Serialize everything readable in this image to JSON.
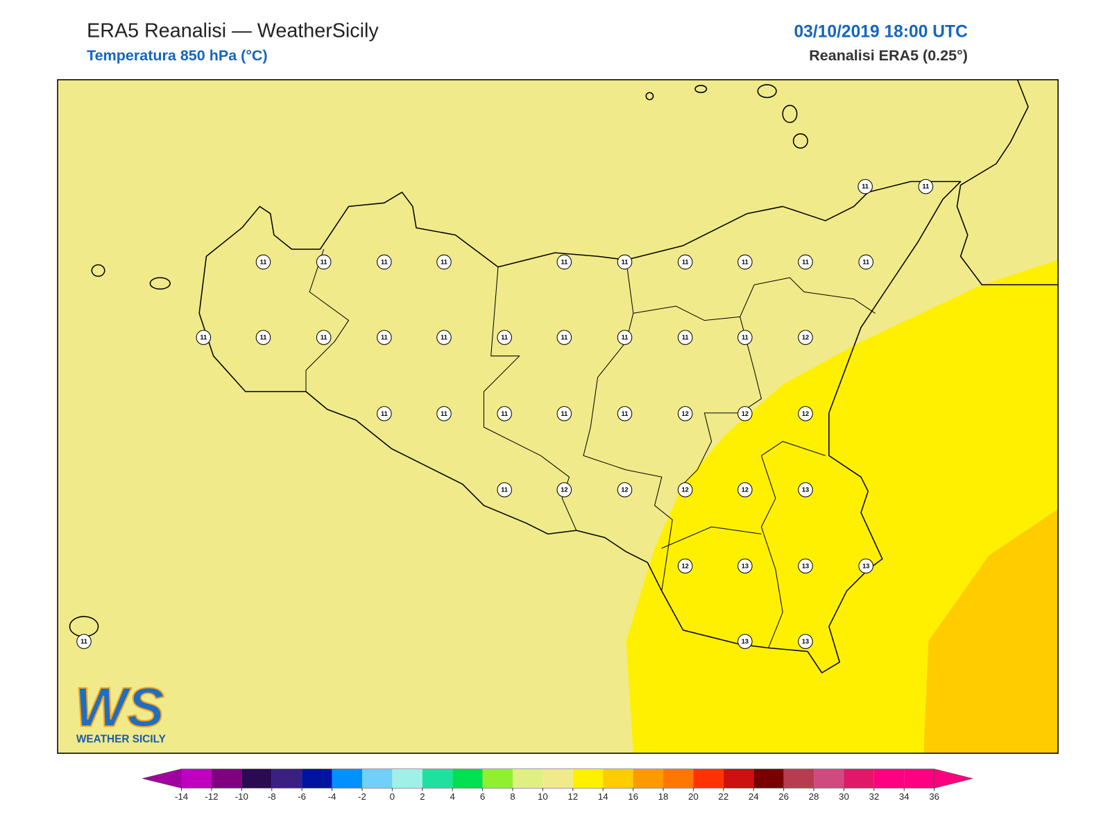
{
  "header": {
    "title": "ERA5 Reanalisi — WeatherSicily",
    "subtitle": "Temperatura 850 hPa (°C)",
    "datetime": "03/10/2019 18:00 UTC",
    "source": "Reanalisi ERA5 (0.25°)"
  },
  "stations": [
    11,
    11,
    11,
    11,
    11,
    11,
    11,
    11,
    11,
    11,
    11,
    11,
    11,
    11,
    11,
    11,
    11,
    11,
    11,
    11,
    11,
    11,
    12,
    11,
    11,
    11,
    11,
    11,
    12,
    12,
    12,
    11,
    12,
    12,
    12,
    12,
    13,
    12,
    13,
    13,
    13,
    13,
    13,
    11
  ],
  "colorbar": {
    "ticks": [
      -14,
      -12,
      -10,
      -8,
      -6,
      -4,
      -2,
      0,
      2,
      4,
      6,
      8,
      10,
      12,
      14,
      16,
      18,
      20,
      22,
      24,
      26,
      28,
      30,
      32,
      34,
      36
    ],
    "under_color": "#a000a0",
    "over_color": "#ff0080",
    "colors": [
      "#c000c0",
      "#800080",
      "#2a0a50",
      "#3a2080",
      "#0014a0",
      "#0090ff",
      "#70d0f8",
      "#a0f0e8",
      "#20e0a0",
      "#00e050",
      "#90f030",
      "#e0f080",
      "#f0ea8a",
      "#fff000",
      "#ffcc00",
      "#ff9900",
      "#ff7700",
      "#ff3300",
      "#cc1111",
      "#7a0000",
      "#b83c50",
      "#d04a80",
      "#e0186a",
      "#ff0080",
      "#ff0080"
    ]
  },
  "logo": {
    "mark": "WS",
    "name": "WEATHER SICILY"
  }
}
